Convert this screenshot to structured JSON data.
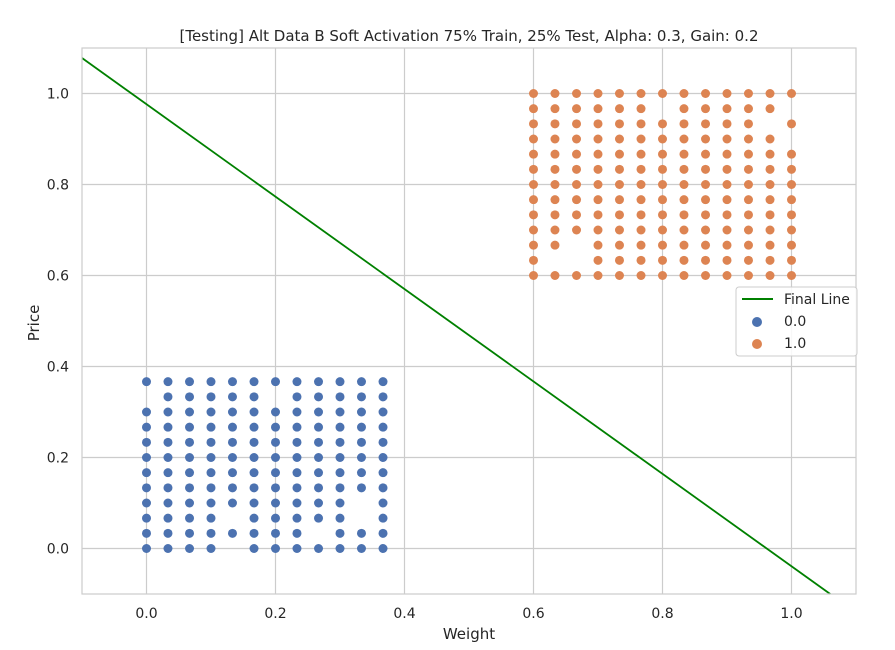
{
  "chart_data": {
    "type": "scatter",
    "title": "[Testing] Alt Data B Soft Activation 75% Train, 25% Test, Alpha: 0.3, Gain: 0.2",
    "xlabel": "Weight",
    "ylabel": "Price",
    "xlim": [
      -0.1,
      1.1
    ],
    "ylim": [
      -0.1,
      1.1
    ],
    "xticks": [
      0.0,
      0.2,
      0.4,
      0.6,
      0.8,
      1.0
    ],
    "yticks": [
      0.0,
      0.2,
      0.4,
      0.6,
      0.8,
      1.0
    ],
    "xtick_labels": [
      "0.0",
      "0.2",
      "0.4",
      "0.6",
      "0.8",
      "1.0"
    ],
    "ytick_labels": [
      "0.0",
      "0.2",
      "0.4",
      "0.6",
      "0.8",
      "1.0"
    ],
    "grid": true,
    "legend_placement": "center-right",
    "line": {
      "name": "Final Line",
      "color": "#008000",
      "x": [
        -0.1,
        1.06
      ],
      "y": [
        1.078,
        -0.1
      ]
    },
    "series": [
      {
        "name": "0.0",
        "color": "#4C72B0",
        "x": [
          0.0,
          0.0333,
          0.0667,
          0.1,
          0.1333,
          0.1667,
          0.2,
          0.2333,
          0.2667,
          0.3,
          0.3333,
          0.3667
        ],
        "y": [
          0.0,
          0.0333,
          0.0667,
          0.1,
          0.1333,
          0.1667,
          0.2,
          0.2333,
          0.2667,
          0.3,
          0.3333,
          0.3667
        ],
        "missing": [
          [
            0.0,
            0.3333
          ],
          [
            0.1333,
            0.0
          ],
          [
            0.2,
            0.3333
          ],
          [
            0.3333,
            0.1
          ],
          [
            0.3333,
            0.0667
          ],
          [
            0.1333,
            0.0667
          ],
          [
            0.2667,
            0.0333
          ]
        ]
      },
      {
        "name": "1.0",
        "color": "#DD8452",
        "x": [
          0.6,
          0.6333,
          0.6667,
          0.7,
          0.7333,
          0.7667,
          0.8,
          0.8333,
          0.8667,
          0.9,
          0.9333,
          0.9667,
          1.0
        ],
        "y": [
          0.6,
          0.6333,
          0.6667,
          0.7,
          0.7333,
          0.7667,
          0.8,
          0.8333,
          0.8667,
          0.9,
          0.9333,
          0.9667,
          1.0
        ],
        "missing": [
          [
            0.6667,
            0.6667
          ],
          [
            0.6333,
            0.6333
          ],
          [
            0.6667,
            0.6333
          ],
          [
            1.0,
            0.9
          ],
          [
            0.9667,
            0.9333
          ],
          [
            1.0,
            0.9667
          ],
          [
            0.8,
            0.9667
          ]
        ]
      }
    ]
  }
}
